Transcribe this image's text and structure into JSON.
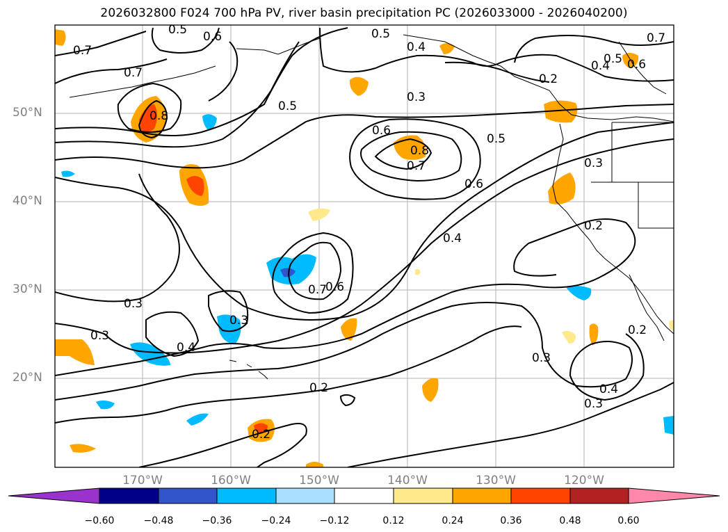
{
  "title": "2026032800 F024 700 hPa PV, river basin precipitation PC (2026033000 - 2026040200)",
  "lat_labels": [
    "50°N",
    "40°N",
    "30°N",
    "20°N"
  ],
  "lon_labels": [
    "170°W",
    "160°W",
    "150°W",
    "140°W",
    "130°W",
    "120°W"
  ],
  "colorbar": {
    "ticks": [
      "−0.60",
      "−0.48",
      "−0.36",
      "−0.24",
      "−0.12",
      "0.12",
      "0.24",
      "0.36",
      "0.48",
      "0.60"
    ],
    "colors": [
      "#9933cc",
      "#000088",
      "#3355cc",
      "#00bbff",
      "#aadfff",
      "#ffffff",
      "#ffe98a",
      "#ffa500",
      "#ff4400",
      "#b22222",
      "#ff88aa"
    ]
  },
  "contour_labels": [
    "0.5",
    "0.6",
    "0.7",
    "0.7",
    "0.8",
    "0.5",
    "0.5",
    "0.4",
    "0.7",
    "0.5",
    "0.4",
    "0.6",
    "0.2",
    "0.3",
    "0.6",
    "0.8",
    "0.7",
    "0.5",
    "0.3",
    "0.6",
    "0.2",
    "0.4",
    "0.3",
    "0.3",
    "0.3",
    "0.4",
    "0.7",
    "0.6",
    "0.2",
    "0.3",
    "0.4",
    "0.3",
    "0.2",
    "0.2"
  ]
}
